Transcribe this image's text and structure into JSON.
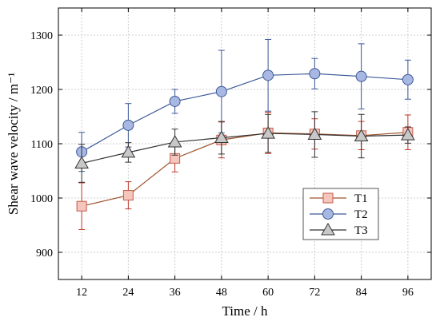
{
  "chart_data": {
    "type": "line",
    "xlabel": "Time / h",
    "ylabel": "Shear wave velocity / m⁻¹",
    "x": [
      12,
      24,
      36,
      48,
      60,
      72,
      84,
      96
    ],
    "xticks": [
      "12",
      "24",
      "36",
      "48",
      "60",
      "72",
      "84",
      "96"
    ],
    "xlim": [
      6,
      102
    ],
    "ylim": [
      850,
      1350
    ],
    "yticks": [
      900,
      1000,
      1100,
      1200,
      1300
    ],
    "grid": true,
    "legend_position": "lower-right",
    "series": [
      {
        "name": "T1",
        "marker": "square",
        "color": "#a0522d",
        "marker_fill": "#f4c6bc",
        "marker_edge": "#c45a4a",
        "errbar_color": "#c0392b",
        "values": [
          985,
          1005,
          1073,
          1107,
          1120,
          1118,
          1115,
          1121
        ],
        "errors": [
          43,
          25,
          25,
          33,
          38,
          28,
          26,
          32
        ]
      },
      {
        "name": "T2",
        "marker": "circle",
        "color": "#3b5998",
        "marker_fill": "#a9b8e2",
        "marker_edge": "#3b5998",
        "errbar_color": "#3b5998",
        "values": [
          1085,
          1134,
          1178,
          1196,
          1226,
          1229,
          1224,
          1218
        ],
        "errors": [
          36,
          40,
          22,
          76,
          66,
          28,
          60,
          36
        ]
      },
      {
        "name": "T3",
        "marker": "triangle",
        "color": "#333333",
        "marker_fill": "#c8c8c8",
        "marker_edge": "#333333",
        "errbar_color": "#333333",
        "values": [
          1064,
          1084,
          1103,
          1111,
          1119,
          1117,
          1114,
          1116
        ],
        "errors": [
          35,
          18,
          24,
          30,
          35,
          42,
          40,
          15
        ]
      }
    ]
  }
}
